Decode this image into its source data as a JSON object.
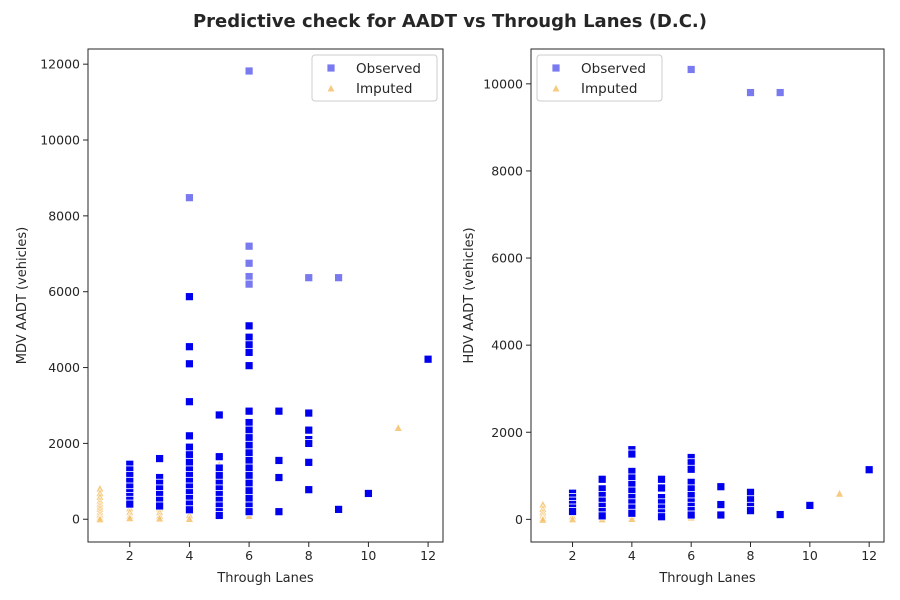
{
  "figure": {
    "title": "Predictive check for AADT vs Through Lanes (D.C.)"
  },
  "colors": {
    "observed_fill": "#0000ee",
    "observed_fill_light": "#7a7af0",
    "imputed_fill": "#f5c26b",
    "imputed_strong": "#f0a020",
    "axis": "#262626"
  },
  "chart_data": [
    {
      "type": "scatter",
      "xlabel": "Through Lanes",
      "ylabel": "MDV AADT (vehicles)",
      "xlim": [
        0.6,
        12.5
      ],
      "ylim": [
        -600,
        12400
      ],
      "xticks": [
        2,
        4,
        6,
        8,
        10,
        12
      ],
      "yticks": [
        0,
        2000,
        4000,
        6000,
        8000,
        10000,
        12000
      ],
      "legend": {
        "placement": "top-right",
        "entries": [
          "Observed",
          "Imputed"
        ]
      },
      "series": [
        {
          "name": "Observed",
          "marker": "square",
          "points": [
            [
              2,
              1450
            ],
            [
              2,
              1300
            ],
            [
              2,
              1150
            ],
            [
              2,
              1000
            ],
            [
              2,
              850
            ],
            [
              2,
              700
            ],
            [
              2,
              600
            ],
            [
              2,
              500
            ],
            [
              2,
              400
            ],
            [
              3,
              1600
            ],
            [
              3,
              1100
            ],
            [
              3,
              950
            ],
            [
              3,
              800
            ],
            [
              3,
              650
            ],
            [
              3,
              500
            ],
            [
              3,
              350
            ],
            [
              4,
              8480
            ],
            [
              4,
              5870
            ],
            [
              4,
              4550
            ],
            [
              4,
              4100
            ],
            [
              4,
              3100
            ],
            [
              4,
              2200
            ],
            [
              4,
              1900
            ],
            [
              4,
              1700
            ],
            [
              4,
              1500
            ],
            [
              4,
              1300
            ],
            [
              4,
              1150
            ],
            [
              4,
              1000
            ],
            [
              4,
              850
            ],
            [
              4,
              700
            ],
            [
              4,
              550
            ],
            [
              4,
              400
            ],
            [
              4,
              250
            ],
            [
              5,
              2750
            ],
            [
              5,
              1650
            ],
            [
              5,
              1350
            ],
            [
              5,
              1150
            ],
            [
              5,
              950
            ],
            [
              5,
              800
            ],
            [
              5,
              650
            ],
            [
              5,
              500
            ],
            [
              5,
              350
            ],
            [
              5,
              200
            ],
            [
              5,
              100
            ],
            [
              6,
              11820
            ],
            [
              6,
              7200
            ],
            [
              6,
              6750
            ],
            [
              6,
              6400
            ],
            [
              6,
              6200
            ],
            [
              6,
              5100
            ],
            [
              6,
              4800
            ],
            [
              6,
              4600
            ],
            [
              6,
              4400
            ],
            [
              6,
              4050
            ],
            [
              6,
              2850
            ],
            [
              6,
              2550
            ],
            [
              6,
              2350
            ],
            [
              6,
              2150
            ],
            [
              6,
              1950
            ],
            [
              6,
              1750
            ],
            [
              6,
              1550
            ],
            [
              6,
              1350
            ],
            [
              6,
              1150
            ],
            [
              6,
              950
            ],
            [
              6,
              750
            ],
            [
              6,
              550
            ],
            [
              6,
              350
            ],
            [
              6,
              200
            ],
            [
              7,
              2850
            ],
            [
              7,
              1550
            ],
            [
              7,
              1100
            ],
            [
              7,
              200
            ],
            [
              8,
              6370
            ],
            [
              8,
              2800
            ],
            [
              8,
              2350
            ],
            [
              8,
              2100
            ],
            [
              8,
              2000
            ],
            [
              8,
              1500
            ],
            [
              8,
              780
            ],
            [
              9,
              6370
            ],
            [
              9,
              260
            ],
            [
              10,
              680
            ],
            [
              12,
              4220
            ]
          ]
        },
        {
          "name": "Imputed",
          "marker": "triangle",
          "points": [
            [
              1,
              820
            ],
            [
              1,
              700
            ],
            [
              1,
              600
            ],
            [
              1,
              500
            ],
            [
              1,
              420
            ],
            [
              1,
              350
            ],
            [
              1,
              280
            ],
            [
              1,
              200
            ],
            [
              1,
              130
            ],
            [
              1,
              60
            ],
            [
              1,
              10
            ],
            [
              2,
              1000
            ],
            [
              2,
              900
            ],
            [
              2,
              800
            ],
            [
              2,
              700
            ],
            [
              2,
              600
            ],
            [
              2,
              500
            ],
            [
              2,
              400
            ],
            [
              2,
              300
            ],
            [
              2,
              200
            ],
            [
              2,
              100
            ],
            [
              2,
              40
            ],
            [
              3,
              1050
            ],
            [
              3,
              900
            ],
            [
              3,
              750
            ],
            [
              3,
              600
            ],
            [
              3,
              450
            ],
            [
              3,
              300
            ],
            [
              3,
              200
            ],
            [
              3,
              100
            ],
            [
              3,
              30
            ],
            [
              4,
              1800
            ],
            [
              4,
              1600
            ],
            [
              4,
              1450
            ],
            [
              4,
              1300
            ],
            [
              4,
              1150
            ],
            [
              4,
              1000
            ],
            [
              4,
              850
            ],
            [
              4,
              700
            ],
            [
              4,
              550
            ],
            [
              4,
              400
            ],
            [
              4,
              250
            ],
            [
              4,
              120
            ],
            [
              4,
              20
            ],
            [
              5,
              1450
            ],
            [
              5,
              1100
            ],
            [
              5,
              850
            ],
            [
              5,
              600
            ],
            [
              5,
              400
            ],
            [
              5,
              250
            ],
            [
              5,
              120
            ],
            [
              6,
              1200
            ],
            [
              6,
              950
            ],
            [
              6,
              700
            ],
            [
              6,
              500
            ],
            [
              6,
              350
            ],
            [
              6,
              200
            ],
            [
              6,
              100
            ],
            [
              11,
              2420
            ]
          ]
        }
      ]
    },
    {
      "type": "scatter",
      "xlabel": "Through Lanes",
      "ylabel": "HDV AADT (vehicles)",
      "xlim": [
        0.6,
        12.5
      ],
      "ylim": [
        -520,
        10800
      ],
      "xticks": [
        2,
        4,
        6,
        8,
        10,
        12
      ],
      "yticks": [
        0,
        2000,
        4000,
        6000,
        8000,
        10000
      ],
      "legend": {
        "placement": "top-left",
        "entries": [
          "Observed",
          "Imputed"
        ]
      },
      "series": [
        {
          "name": "Observed",
          "marker": "square",
          "points": [
            [
              2,
              600
            ],
            [
              2,
              500
            ],
            [
              2,
              420
            ],
            [
              2,
              340
            ],
            [
              2,
              260
            ],
            [
              2,
              180
            ],
            [
              3,
              920
            ],
            [
              3,
              700
            ],
            [
              3,
              550
            ],
            [
              3,
              420
            ],
            [
              3,
              300
            ],
            [
              3,
              180
            ],
            [
              3,
              80
            ],
            [
              4,
              1600
            ],
            [
              4,
              1500
            ],
            [
              4,
              1100
            ],
            [
              4,
              950
            ],
            [
              4,
              800
            ],
            [
              4,
              650
            ],
            [
              4,
              500
            ],
            [
              4,
              380
            ],
            [
              4,
              260
            ],
            [
              4,
              140
            ],
            [
              5,
              920
            ],
            [
              5,
              720
            ],
            [
              5,
              500
            ],
            [
              5,
              380
            ],
            [
              5,
              260
            ],
            [
              5,
              150
            ],
            [
              5,
              60
            ],
            [
              6,
              10330
            ],
            [
              6,
              1420
            ],
            [
              6,
              1300
            ],
            [
              6,
              1150
            ],
            [
              6,
              850
            ],
            [
              6,
              700
            ],
            [
              6,
              550
            ],
            [
              6,
              400
            ],
            [
              6,
              300
            ],
            [
              6,
              200
            ],
            [
              6,
              100
            ],
            [
              7,
              750
            ],
            [
              7,
              340
            ],
            [
              7,
              100
            ],
            [
              8,
              9800
            ],
            [
              8,
              620
            ],
            [
              8,
              450
            ],
            [
              8,
              300
            ],
            [
              8,
              200
            ],
            [
              9,
              9800
            ],
            [
              9,
              110
            ],
            [
              10,
              320
            ],
            [
              12,
              1140
            ]
          ]
        },
        {
          "name": "Imputed",
          "marker": "triangle",
          "points": [
            [
              1,
              350
            ],
            [
              1,
              250
            ],
            [
              1,
              170
            ],
            [
              1,
              100
            ],
            [
              1,
              40
            ],
            [
              1,
              0
            ],
            [
              2,
              580
            ],
            [
              2,
              480
            ],
            [
              2,
              380
            ],
            [
              2,
              280
            ],
            [
              2,
              180
            ],
            [
              2,
              80
            ],
            [
              2,
              10
            ],
            [
              3,
              700
            ],
            [
              3,
              550
            ],
            [
              3,
              420
            ],
            [
              3,
              300
            ],
            [
              3,
              180
            ],
            [
              3,
              80
            ],
            [
              3,
              10
            ],
            [
              4,
              500
            ],
            [
              4,
              400
            ],
            [
              4,
              300
            ],
            [
              4,
              200
            ],
            [
              4,
              100
            ],
            [
              4,
              20
            ],
            [
              5,
              450
            ],
            [
              5,
              350
            ],
            [
              5,
              250
            ],
            [
              5,
              150
            ],
            [
              5,
              60
            ],
            [
              6,
              300
            ],
            [
              6,
              200
            ],
            [
              6,
              120
            ],
            [
              6,
              50
            ],
            [
              11,
              600
            ]
          ]
        }
      ]
    }
  ]
}
